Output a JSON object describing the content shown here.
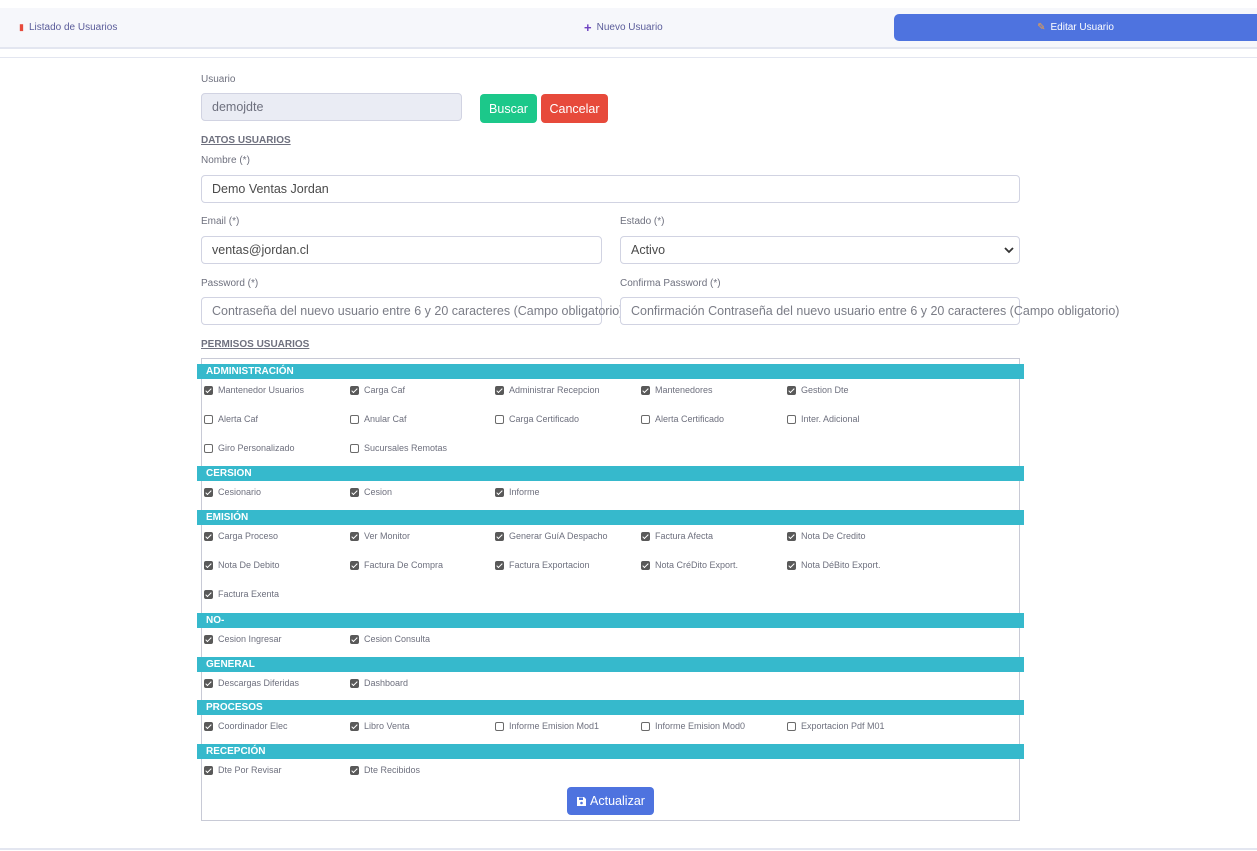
{
  "tabs": [
    {
      "label": "Listado de Usuarios",
      "icon": "clipboard-list-icon"
    },
    {
      "label": "Nuevo Usuario",
      "icon": "plus-icon"
    },
    {
      "label": "Editar Usuario",
      "icon": "pencil-icon",
      "active": true
    }
  ],
  "search": {
    "label": "Usuario",
    "value": "demojdte",
    "buscar": "Buscar",
    "cancelar": "Cancelar"
  },
  "datos": {
    "section_title": "DATOS USUARIOS",
    "nombre_label": "Nombre (*)",
    "nombre_value": "Demo Ventas Jordan",
    "email_label": "Email (*)",
    "email_value": "ventas@jordan.cl",
    "estado_label": "Estado (*)",
    "estado_value": "Activo",
    "password_label": "Password (*)",
    "password_placeholder": "Contraseña del nuevo usuario entre 6 y 20 caracteres (Campo obligatorio)",
    "confirma_label": "Confirma Password (*)",
    "confirma_placeholder": "Confirmación Contraseña del nuevo usuario entre 6 y 20 caracteres (Campo obligatorio)"
  },
  "permisos": {
    "section_title": "PERMISOS USUARIOS",
    "groups": [
      {
        "title": "ADMINISTRACIÓN",
        "items": [
          {
            "label": "Mantenedor Usuarios",
            "checked": true
          },
          {
            "label": "Carga Caf",
            "checked": true
          },
          {
            "label": "Administrar Recepcion",
            "checked": true
          },
          {
            "label": "Mantenedores",
            "checked": true
          },
          {
            "label": "Gestion Dte",
            "checked": true
          },
          {
            "label": "Alerta Caf",
            "checked": false
          },
          {
            "label": "Anular Caf",
            "checked": false
          },
          {
            "label": "Carga Certificado",
            "checked": false
          },
          {
            "label": "Alerta Certificado",
            "checked": false
          },
          {
            "label": "Inter. Adicional",
            "checked": false
          },
          {
            "label": "Giro Personalizado",
            "checked": false
          },
          {
            "label": "Sucursales Remotas",
            "checked": false
          }
        ]
      },
      {
        "title": "CERSION",
        "items": [
          {
            "label": "Cesionario",
            "checked": true
          },
          {
            "label": "Cesion",
            "checked": true
          },
          {
            "label": "Informe",
            "checked": true
          }
        ]
      },
      {
        "title": "EMISIÓN",
        "items": [
          {
            "label": "Carga Proceso",
            "checked": true
          },
          {
            "label": "Ver Monitor",
            "checked": true
          },
          {
            "label": "Generar GuíA Despacho",
            "checked": true
          },
          {
            "label": "Factura Afecta",
            "checked": true
          },
          {
            "label": "Nota De Credito",
            "checked": true
          },
          {
            "label": "Nota De Debito",
            "checked": true
          },
          {
            "label": "Factura De Compra",
            "checked": true
          },
          {
            "label": "Factura Exportacion",
            "checked": true
          },
          {
            "label": "Nota CréDito Export.",
            "checked": true
          },
          {
            "label": "Nota DéBito Export.",
            "checked": true
          },
          {
            "label": "Factura Exenta",
            "checked": true
          }
        ]
      },
      {
        "title": "NO-",
        "items": [
          {
            "label": "Cesion Ingresar",
            "checked": true
          },
          {
            "label": "Cesion Consulta",
            "checked": true
          }
        ]
      },
      {
        "title": "GENERAL",
        "items": [
          {
            "label": "Descargas Diferidas",
            "checked": true
          },
          {
            "label": "Dashboard",
            "checked": true
          }
        ]
      },
      {
        "title": "PROCESOS",
        "items": [
          {
            "label": "Coordinador Elec",
            "checked": true
          },
          {
            "label": "Libro Venta",
            "checked": true
          },
          {
            "label": "Informe Emision Mod1",
            "checked": false
          },
          {
            "label": "Informe Emision Mod0",
            "checked": false
          },
          {
            "label": "Exportacion Pdf M01",
            "checked": false
          }
        ]
      },
      {
        "title": "RECEPCIÓN",
        "items": [
          {
            "label": "Dte Por Revisar",
            "checked": true
          },
          {
            "label": "Dte Recibidos",
            "checked": true
          }
        ]
      }
    ],
    "submit_label": "Actualizar"
  },
  "colors": {
    "primary": "#4e73df",
    "success": "#1cc88a",
    "danger": "#e74a3b",
    "info": "#36b9cc"
  }
}
